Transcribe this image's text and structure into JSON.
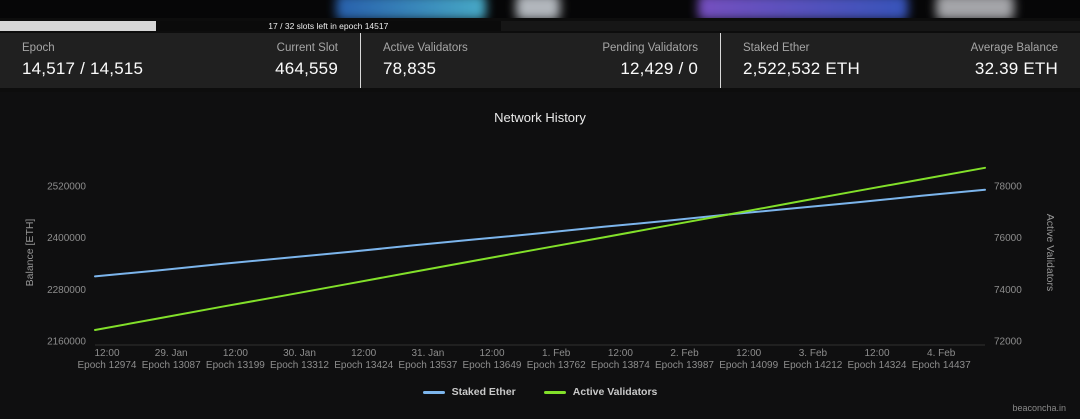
{
  "progress": {
    "label": "17 / 32 slots left in epoch 14517",
    "fill_percent": 46.4
  },
  "stats": {
    "groups": [
      {
        "left": {
          "label": "Epoch",
          "value": "14,517 / 14,515"
        },
        "right": {
          "label": "Current Slot",
          "value": "464,559"
        }
      },
      {
        "left": {
          "label": "Active Validators",
          "value": "78,835"
        },
        "right": {
          "label": "Pending Validators",
          "value": "12,429 / 0"
        }
      },
      {
        "left": {
          "label": "Staked Ether",
          "value": "2,522,532 ETH"
        },
        "right": {
          "label": "Average Balance",
          "value": "32.39 ETH"
        }
      }
    ]
  },
  "chart_data": {
    "type": "line",
    "title": "Network History",
    "grid": false,
    "legend_position": "bottom",
    "left_axis": {
      "label": "Balance [ETH]",
      "ticks": [
        2160000,
        2280000,
        2400000,
        2520000
      ],
      "ylim": [
        2100000,
        2580000
      ]
    },
    "right_axis": {
      "label": "Active Validators",
      "ticks": [
        72000,
        74000,
        76000,
        78000
      ],
      "ylim": [
        71000,
        79000
      ]
    },
    "x_ticks": [
      {
        "time": "12:00",
        "epoch": "Epoch 12974"
      },
      {
        "time": "29. Jan",
        "epoch": "Epoch 13087"
      },
      {
        "time": "12:00",
        "epoch": "Epoch 13199"
      },
      {
        "time": "30. Jan",
        "epoch": "Epoch 13312"
      },
      {
        "time": "12:00",
        "epoch": "Epoch 13424"
      },
      {
        "time": "31. Jan",
        "epoch": "Epoch 13537"
      },
      {
        "time": "12:00",
        "epoch": "Epoch 13649"
      },
      {
        "time": "1. Feb",
        "epoch": "Epoch 13762"
      },
      {
        "time": "12:00",
        "epoch": "Epoch 13874"
      },
      {
        "time": "2. Feb",
        "epoch": "Epoch 13987"
      },
      {
        "time": "12:00",
        "epoch": "Epoch 14099"
      },
      {
        "time": "3. Feb",
        "epoch": "Epoch 14212"
      },
      {
        "time": "12:00",
        "epoch": "Epoch 14324"
      },
      {
        "time": "4. Feb",
        "epoch": "Epoch 14437"
      }
    ],
    "series": [
      {
        "name": "Staked Ether",
        "color": "#7cb5ec",
        "axis": "left",
        "values": [
          2310000,
          2324000,
          2339000,
          2353000,
          2367000,
          2382000,
          2396000,
          2410000,
          2425000,
          2439000,
          2454000,
          2468000,
          2482000,
          2497000,
          2511000
        ]
      },
      {
        "name": "Active Validators",
        "color": "#82e02a",
        "axis": "right",
        "values": [
          72430,
          72880,
          73330,
          73770,
          74220,
          74670,
          75120,
          75570,
          76010,
          76460,
          76910,
          77360,
          77810,
          78250,
          78700
        ]
      }
    ]
  },
  "footer": {
    "source": "beaconcha.in"
  }
}
